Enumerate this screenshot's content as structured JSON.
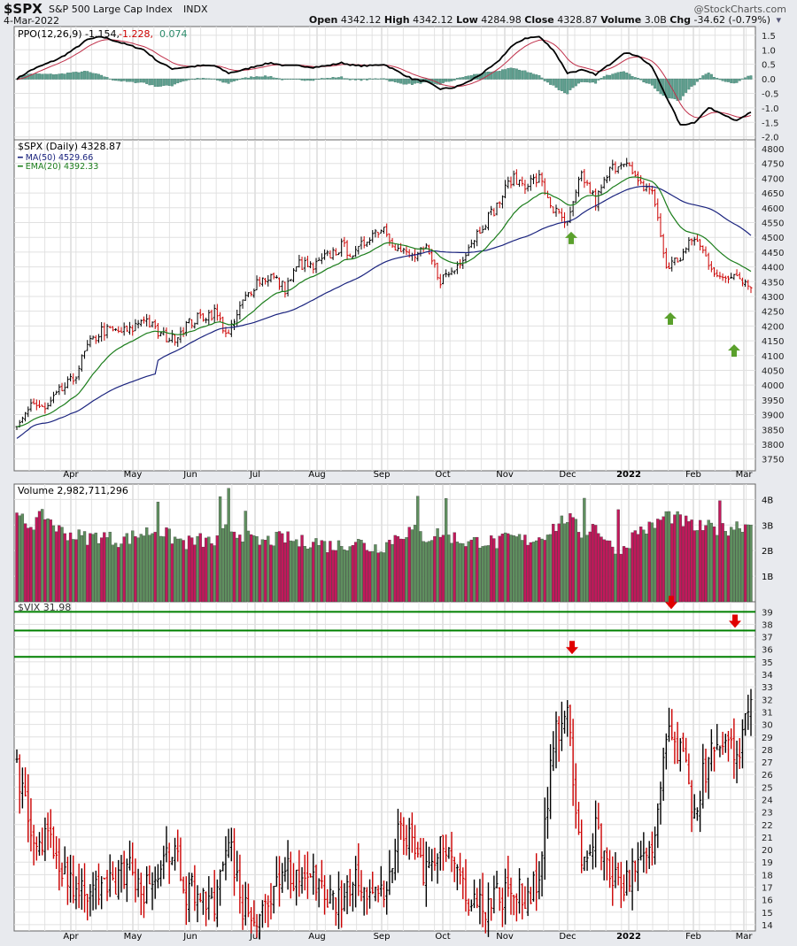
{
  "header": {
    "symbol": "$SPX",
    "name": "S&P 500 Large Cap Index",
    "exchange": "INDX",
    "date": "4-Mar-2022",
    "credit": "@StockCharts.com",
    "open_label": "Open",
    "open": "4342.12",
    "high_label": "High",
    "high": "4342.12",
    "low_label": "Low",
    "low": "4284.98",
    "close_label": "Close",
    "close": "4328.87",
    "volume_label": "Volume",
    "volume": "3.0B",
    "chg_label": "Chg",
    "chg": "-34.62 (-0.79%)"
  },
  "colors": {
    "up": "#000000",
    "down": "#cc0000",
    "ma50": "#1a237e",
    "ema20": "#1b7d1b",
    "vol_up": "#5f8f5f",
    "vol_down": "#c2185b",
    "ppo_hist": "#5f9f8f",
    "vix_lines": "#008000",
    "arrow_up": "#5aa02c",
    "arrow_down": "#e00000"
  },
  "chart_data": [
    {
      "type": "line",
      "panel": "ppo",
      "legend": "PPO(12,26,9)",
      "legend_values": [
        "-1.154",
        "-1.228",
        "0.074"
      ],
      "ylim": [
        -2.1,
        1.8
      ],
      "ticks": [
        "1.5",
        "1.0",
        "0.5",
        "0.0",
        "-0.5",
        "-1.0",
        "-1.5",
        "-2.0"
      ],
      "ppo_weekly": [
        0.0,
        0.3,
        0.5,
        0.7,
        1.0,
        1.35,
        1.45,
        1.3,
        1.15,
        1.0,
        0.6,
        0.35,
        0.4,
        0.45,
        0.45,
        0.2,
        0.3,
        0.45,
        0.55,
        0.45,
        0.45,
        0.4,
        0.45,
        0.55,
        0.45,
        0.45,
        0.5,
        0.25,
        0.0,
        -0.1,
        -0.35,
        -0.3,
        -0.1,
        0.2,
        0.55,
        1.1,
        1.4,
        1.45,
        1.0,
        0.2,
        0.3,
        0.15,
        0.5,
        0.9,
        0.8,
        0.4,
        -0.6,
        -1.6,
        -1.5,
        -1.0,
        -1.2,
        -1.45,
        -1.15
      ]
    },
    {
      "type": "ohlc",
      "panel": "price",
      "legend": "$SPX (Daily) 4328.87",
      "ma_legend": "MA(50) 4529.66",
      "ema_legend": "EMA(20) 4392.33",
      "ylim": [
        3710,
        4830
      ],
      "ticks": [
        "4800",
        "4750",
        "4700",
        "4650",
        "4600",
        "4550",
        "4500",
        "4450",
        "4400",
        "4350",
        "4300",
        "4250",
        "4200",
        "4150",
        "4100",
        "4050",
        "4000",
        "3950",
        "3900",
        "3850",
        "3800",
        "3750"
      ],
      "weekly_close": [
        3841,
        3943,
        3913,
        3974,
        4019,
        4128,
        4185,
        4180,
        4181,
        4232,
        4173,
        4155,
        4204,
        4229,
        4247,
        4166,
        4280,
        4352,
        4369,
        4327,
        4411,
        4395,
        4436,
        4468,
        4441,
        4509,
        4535,
        4458,
        4432,
        4455,
        4357,
        4391,
        4471,
        4544,
        4605,
        4697,
        4682,
        4698,
        4594,
        4538,
        4712,
        4620,
        4725,
        4766,
        4677,
        4662,
        4398,
        4432,
        4500,
        4418,
        4349,
        4385,
        4329
      ],
      "support_arrows_dates": [
        "Dec",
        "late Jan",
        "late Feb"
      ]
    },
    {
      "type": "bar",
      "panel": "volume",
      "legend": "Volume 2,982,711,296",
      "ylim": [
        0,
        4.6
      ],
      "unit": "B",
      "ticks": [
        "4B",
        "3B",
        "2B",
        "1B"
      ],
      "weekly_volume_b": [
        3.3,
        3.0,
        3.4,
        2.8,
        2.6,
        2.5,
        2.6,
        2.4,
        2.5,
        2.7,
        2.8,
        2.5,
        2.3,
        2.4,
        2.3,
        2.9,
        2.6,
        2.3,
        2.4,
        2.5,
        2.3,
        2.4,
        2.2,
        2.2,
        2.4,
        2.1,
        2.2,
        2.6,
        2.8,
        2.5,
        2.7,
        2.5,
        2.3,
        2.4,
        2.3,
        2.5,
        2.4,
        2.5,
        2.9,
        3.3,
        2.7,
        3.0,
        2.2,
        2.1,
        2.8,
        2.9,
        3.4,
        3.2,
        2.9,
        2.9,
        2.8,
        3.0,
        3.0
      ]
    },
    {
      "type": "ohlc",
      "panel": "vix",
      "legend": "$VIX 31.98",
      "ylim": [
        13.5,
        39.8
      ],
      "ticks": [
        "39",
        "38",
        "37",
        "36",
        "35",
        "34",
        "33",
        "32",
        "31",
        "30",
        "29",
        "28",
        "27",
        "26",
        "25",
        "24",
        "23",
        "22",
        "21",
        "20",
        "19",
        "18",
        "17",
        "16",
        "15",
        "14"
      ],
      "weekly_close": [
        27.0,
        20.7,
        20.9,
        18.9,
        17.3,
        16.7,
        16.3,
        17.3,
        18.6,
        16.7,
        18.8,
        20.2,
        16.8,
        16.4,
        15.7,
        20.7,
        15.6,
        15.1,
        16.2,
        18.5,
        17.2,
        18.2,
        16.2,
        15.5,
        18.6,
        16.4,
        16.4,
        20.9,
        20.8,
        17.8,
        21.2,
        18.8,
        16.3,
        15.4,
        16.3,
        16.5,
        16.3,
        17.9,
        28.6,
        30.7,
        18.7,
        21.6,
        18.0,
        17.2,
        18.8,
        19.2,
        28.9,
        27.7,
        23.2,
        27.4,
        27.8,
        27.6,
        31.98
      ],
      "horizontal_lines": [
        39.0,
        37.5,
        35.4
      ]
    }
  ],
  "x_axis": {
    "months": [
      "Apr",
      "May",
      "Jun",
      "Jul",
      "Aug",
      "Sep",
      "Oct",
      "Nov",
      "Dec",
      "2022",
      "Feb",
      "Mar"
    ]
  }
}
